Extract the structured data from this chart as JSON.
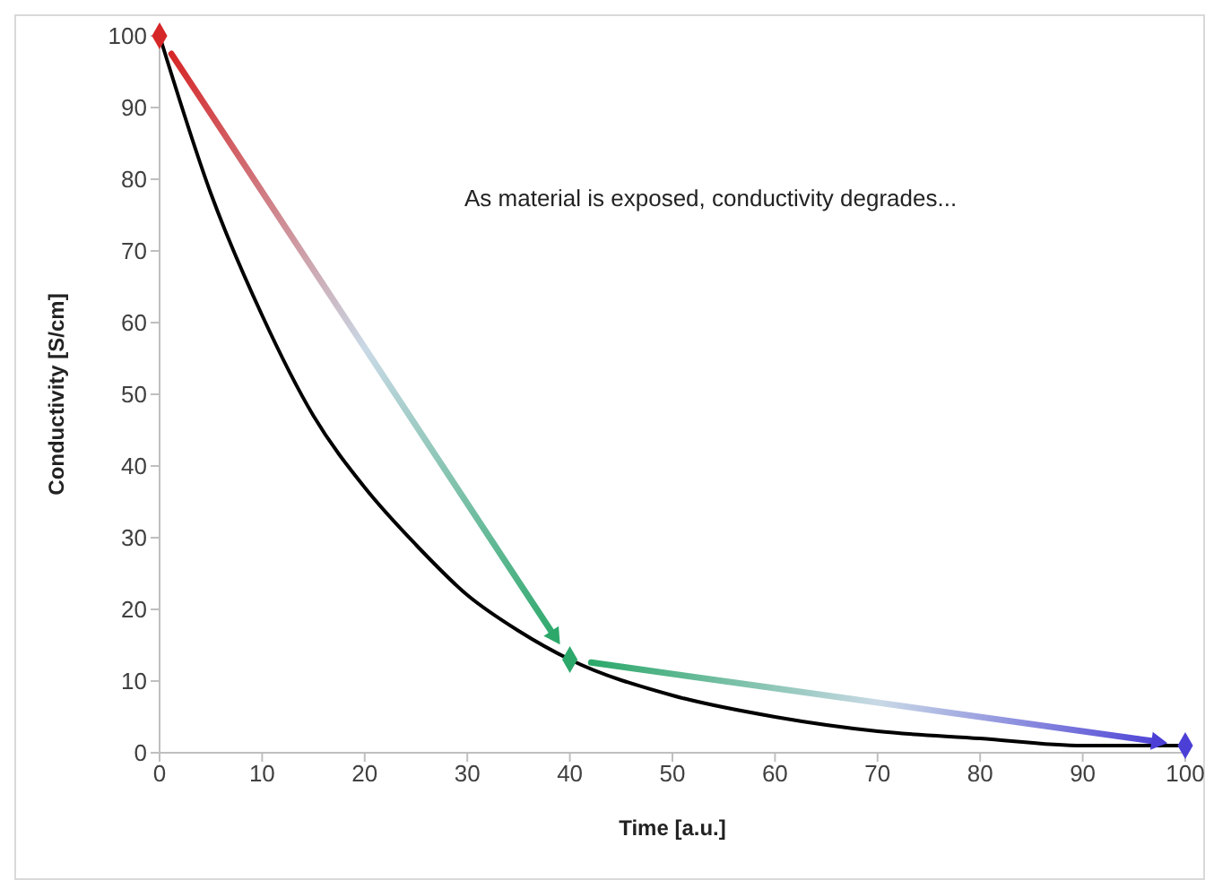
{
  "chart_data": {
    "type": "line",
    "xlabel": "Time [a.u.]",
    "ylabel": "Conductivity [S/cm]",
    "annotations": [
      "As material is exposed, conductivity degrades..."
    ],
    "xlim": [
      0,
      100
    ],
    "ylim": [
      0,
      100
    ],
    "xticks": [
      0,
      10,
      20,
      30,
      40,
      50,
      60,
      70,
      80,
      90,
      100
    ],
    "yticks": [
      0,
      10,
      20,
      30,
      40,
      50,
      60,
      70,
      80,
      90,
      100
    ],
    "series": [
      {
        "color": "#000000",
        "marker": "none",
        "x": [
          0,
          5,
          10,
          15,
          20,
          25,
          30,
          35,
          40,
          50,
          60,
          70,
          80,
          90,
          100
        ],
        "values": [
          100,
          78,
          61,
          47,
          37,
          29,
          22,
          17,
          13,
          8,
          5,
          3,
          2,
          1,
          1
        ]
      },
      {
        "type": "scatter",
        "marker": "diamond",
        "colors": [
          "#d62728",
          "#2ca86a",
          "#4b3fd6"
        ],
        "x": [
          0,
          40,
          100
        ],
        "values": [
          100,
          13,
          1
        ]
      }
    ]
  }
}
